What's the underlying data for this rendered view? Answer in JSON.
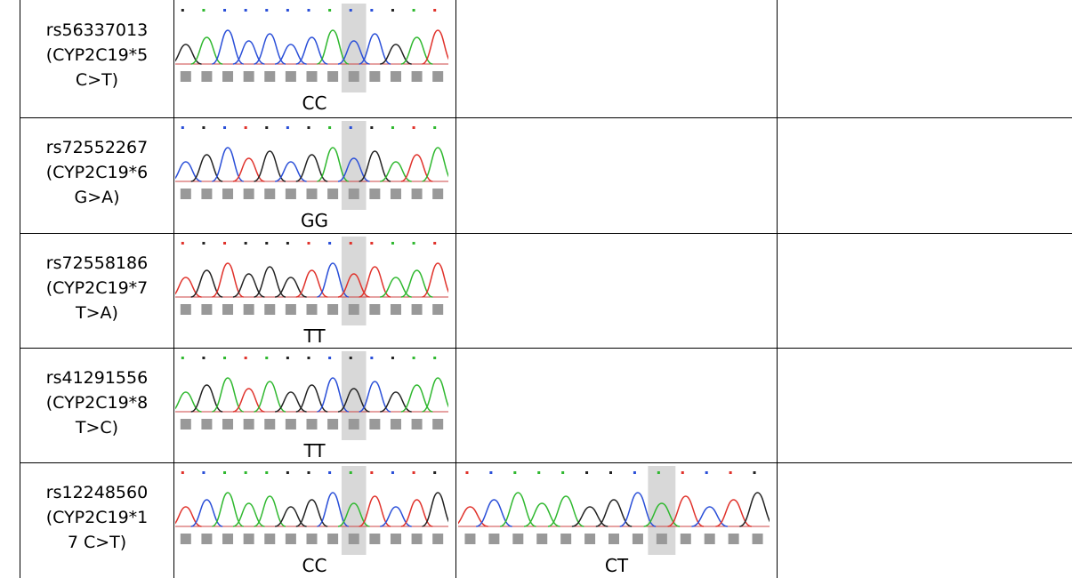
{
  "table": {
    "rows": [
      {
        "label_lines": [
          "rs56337013",
          "(CYP2C19*5",
          "C>T)"
        ],
        "genotypes": [
          "CC"
        ]
      },
      {
        "label_lines": [
          "rs72552267",
          "(CYP2C19*6",
          "G>A)"
        ],
        "genotypes": [
          "GG"
        ]
      },
      {
        "label_lines": [
          "rs72558186",
          "(CYP2C19*7",
          "T>A)"
        ],
        "genotypes": [
          "TT"
        ]
      },
      {
        "label_lines": [
          "rs41291556",
          "(CYP2C19*8",
          "T>C)"
        ],
        "genotypes": [
          "TT"
        ]
      },
      {
        "label_lines": [
          "rs12248560",
          "(CYP2C19*1",
          "7 C>T)"
        ],
        "genotypes": [
          "CC",
          "CT"
        ]
      }
    ]
  }
}
